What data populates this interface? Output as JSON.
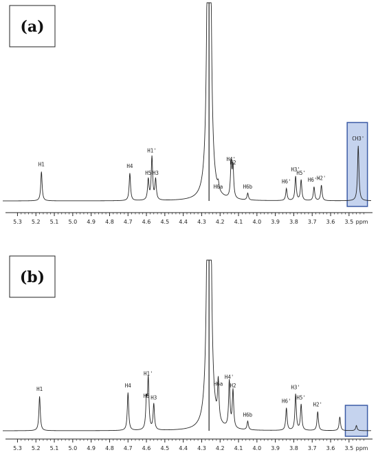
{
  "chart_data": [
    {
      "type": "line",
      "panel_label": "(a)",
      "x_unit": "ppm",
      "xlim": [
        5.38,
        3.38
      ],
      "x_reversed": true,
      "ticks": [
        5.3,
        5.2,
        5.1,
        5.0,
        4.9,
        4.8,
        4.7,
        4.6,
        4.5,
        4.4,
        4.3,
        4.2,
        4.1,
        4.0,
        3.9,
        3.8,
        3.7,
        3.6,
        3.5
      ],
      "tick_labels": [
        "5.3",
        "5.2",
        "5.1",
        "5.0",
        "4.9",
        "4.8",
        "4.7",
        "4.6",
        "4.5",
        "4.4",
        "4.3",
        "4.2",
        "4.1",
        "4.0",
        "3.9",
        "3.8",
        "3.7",
        "3.6",
        "3.5"
      ],
      "peaks": [
        {
          "label": "H1",
          "ppm": 5.17,
          "intensity": 0.17
        },
        {
          "label": "H4",
          "ppm": 4.69,
          "intensity": 0.16
        },
        {
          "label": "H5",
          "ppm": 4.59,
          "intensity": 0.12
        },
        {
          "label": "H1'",
          "ppm": 4.57,
          "intensity": 0.25
        },
        {
          "label": "H3",
          "ppm": 4.55,
          "intensity": 0.12
        },
        {
          "label": "H6a",
          "ppm": 4.21,
          "intensity": 0.04
        },
        {
          "label": "H4'",
          "ppm": 4.14,
          "intensity": 0.2
        },
        {
          "label": "H2",
          "ppm": 4.13,
          "intensity": 0.18
        },
        {
          "label": "H6b",
          "ppm": 4.05,
          "intensity": 0.04
        },
        {
          "label": "H6'",
          "ppm": 3.84,
          "intensity": 0.07
        },
        {
          "label": "H3'",
          "ppm": 3.79,
          "intensity": 0.14
        },
        {
          "label": "H5'",
          "ppm": 3.76,
          "intensity": 0.12
        },
        {
          "label": "H6''",
          "ppm": 3.69,
          "intensity": 0.08
        },
        {
          "label": "H2'",
          "ppm": 3.65,
          "intensity": 0.09
        },
        {
          "label": "CH3'",
          "ppm": 3.45,
          "intensity": 0.32
        }
      ],
      "solvent_peak": {
        "ppm": 4.26,
        "intensity": 1.0
      },
      "highlight_box_ppm": [
        3.51,
        3.4
      ],
      "highlight_color": "#c5d3ee",
      "highlight_border": "#3b5ba5"
    },
    {
      "type": "line",
      "panel_label": "(b)",
      "x_unit": "ppm",
      "xlim": [
        5.38,
        3.38
      ],
      "x_reversed": true,
      "ticks": [
        5.3,
        5.2,
        5.1,
        5.0,
        4.9,
        4.8,
        4.7,
        4.6,
        4.5,
        4.4,
        4.3,
        4.2,
        4.1,
        4.0,
        3.9,
        3.8,
        3.7,
        3.6,
        3.5
      ],
      "tick_labels": [
        "5.3",
        "5.2",
        "5.1",
        "5.0",
        "4.9",
        "4.8",
        "4.7",
        "4.6",
        "4.5",
        "4.4",
        "4.3",
        "4.2",
        "4.1",
        "4.0",
        "3.9",
        "3.8",
        "3.7",
        "3.6",
        "3.5"
      ],
      "peaks": [
        {
          "label": "H1",
          "ppm": 5.18,
          "intensity": 0.2
        },
        {
          "label": "H4",
          "ppm": 4.7,
          "intensity": 0.22
        },
        {
          "label": "H5",
          "ppm": 4.6,
          "intensity": 0.16
        },
        {
          "label": "H1'",
          "ppm": 4.59,
          "intensity": 0.29
        },
        {
          "label": "H3",
          "ppm": 4.56,
          "intensity": 0.15
        },
        {
          "label": "H6a",
          "ppm": 4.21,
          "intensity": 0.23
        },
        {
          "label": "H4'",
          "ppm": 4.15,
          "intensity": 0.27
        },
        {
          "label": "H2",
          "ppm": 4.13,
          "intensity": 0.22
        },
        {
          "label": "H6b",
          "ppm": 4.05,
          "intensity": 0.05
        },
        {
          "label": "H6'",
          "ppm": 3.84,
          "intensity": 0.13
        },
        {
          "label": "H3'",
          "ppm": 3.79,
          "intensity": 0.21
        },
        {
          "label": "H5'",
          "ppm": 3.76,
          "intensity": 0.15
        },
        {
          "label": "H2'",
          "ppm": 3.67,
          "intensity": 0.11
        },
        {
          "label": "",
          "ppm": 3.55,
          "intensity": 0.08
        },
        {
          "label": "",
          "ppm": 3.46,
          "intensity": 0.03
        }
      ],
      "solvent_peak": {
        "ppm": 4.26,
        "intensity": 1.0
      },
      "highlight_box_ppm": [
        3.52,
        3.4
      ],
      "highlight_color": "#c5d3ee",
      "highlight_border": "#3b5ba5"
    }
  ]
}
